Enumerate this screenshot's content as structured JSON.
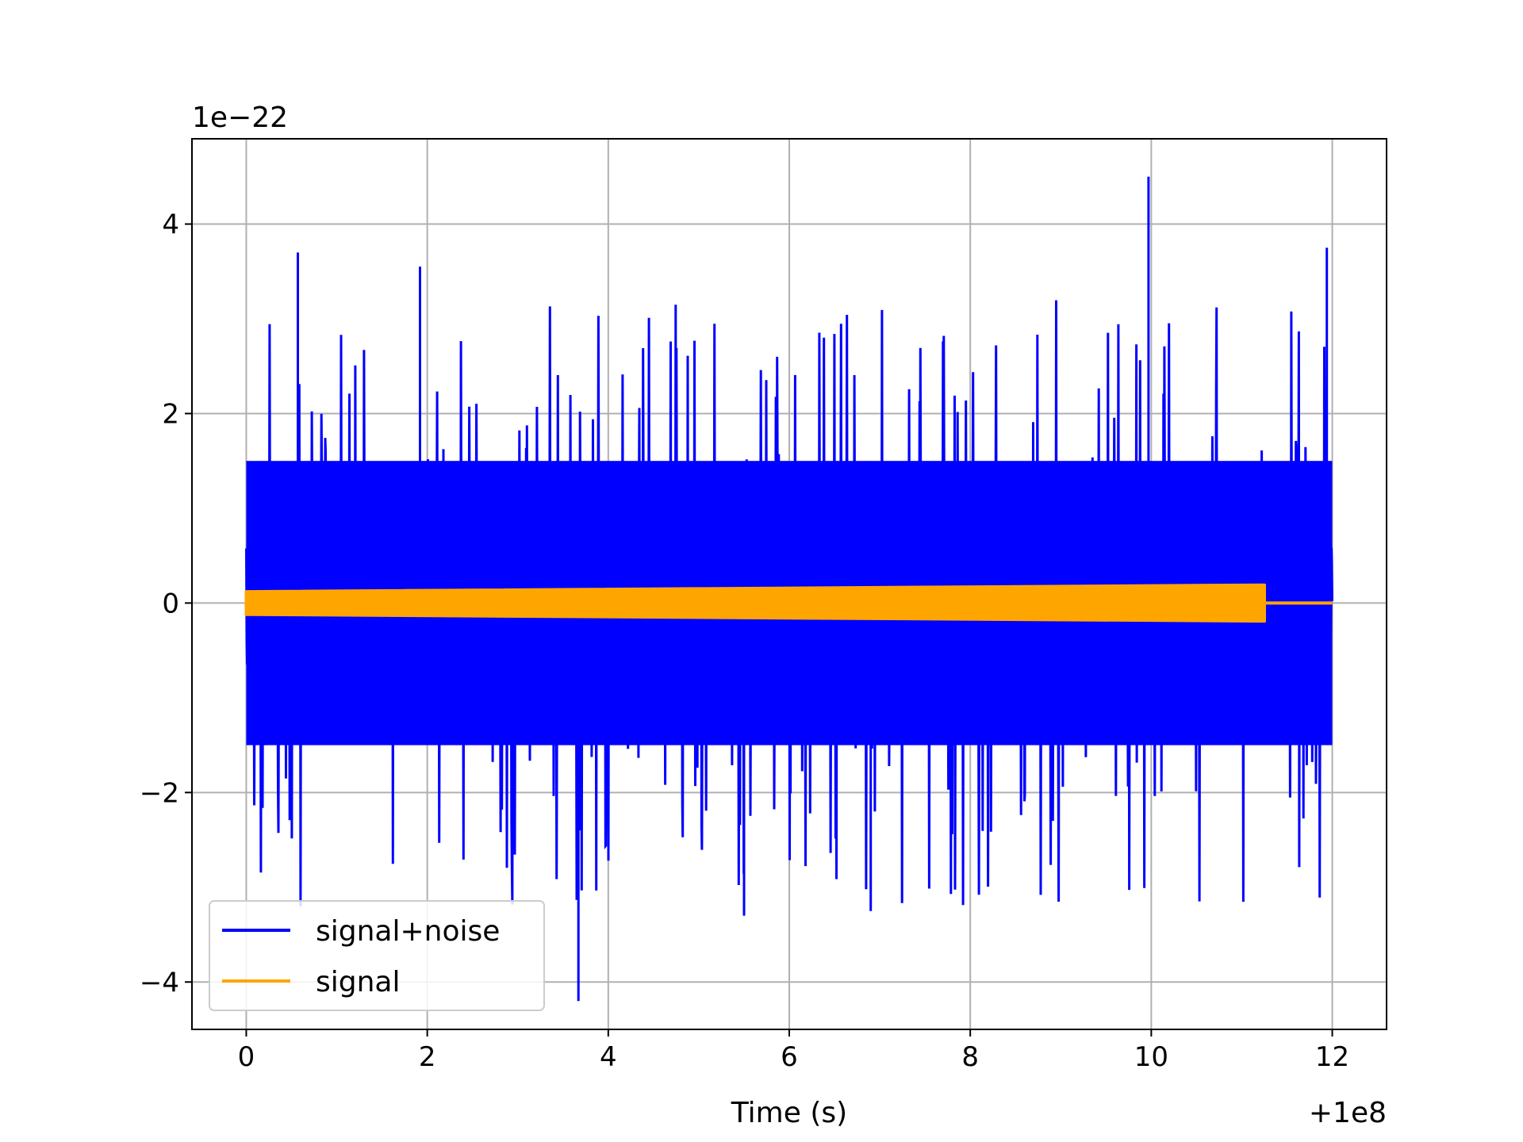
{
  "chart_data": {
    "type": "line",
    "title": "",
    "xlabel": "Time (s)",
    "ylabel": "",
    "x_offset_label": "+1e8",
    "y_scale_label": "1e−22",
    "xlim": [
      -0.6,
      12.6
    ],
    "ylim": [
      -4.5,
      4.9
    ],
    "x_ticks": [
      0,
      2,
      4,
      6,
      8,
      10,
      12
    ],
    "x_tick_labels": [
      "0",
      "2",
      "4",
      "6",
      "8",
      "10",
      "12"
    ],
    "y_ticks": [
      -4,
      -2,
      0,
      2,
      4
    ],
    "y_tick_labels": [
      "−4",
      "−2",
      "0",
      "2",
      "4"
    ],
    "grid": true,
    "legend_position": "lower-left",
    "series": [
      {
        "name": "signal+noise",
        "color": "#0000ff",
        "x_range": [
          0,
          12
        ],
        "envelope": {
          "typical_upper": 1.5,
          "typical_lower": -1.5,
          "peak_max": 4.5,
          "peak_min": -4.2
        },
        "notable_peaks": [
          {
            "x": 9.97,
            "y": 4.5
          },
          {
            "x": 0.57,
            "y": 3.7
          },
          {
            "x": 11.94,
            "y": 3.75
          },
          {
            "x": 1.92,
            "y": 3.55
          },
          {
            "x": 3.67,
            "y": -4.2
          },
          {
            "x": 5.5,
            "y": -3.3
          },
          {
            "x": 6.9,
            "y": -3.25
          }
        ]
      },
      {
        "name": "signal",
        "color": "#ffa500",
        "x_range": [
          0,
          12
        ],
        "chirp_end": 11.25,
        "amplitude_start": 0.12,
        "amplitude_end": 0.19,
        "after_chirp": 0
      }
    ]
  }
}
